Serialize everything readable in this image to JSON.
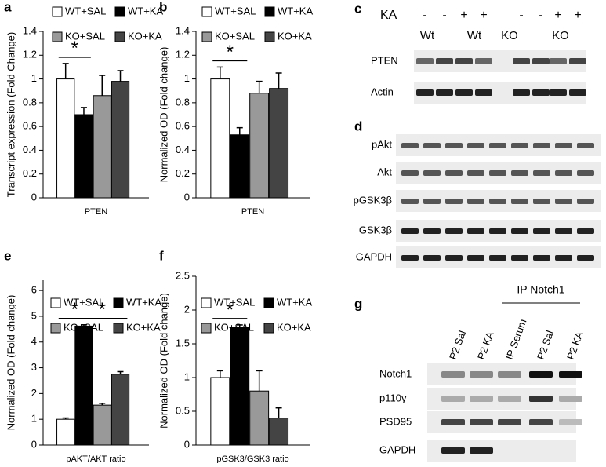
{
  "chart_data": [
    {
      "type": "bar",
      "panel": "a",
      "ylabel": "Transcript expression (Fold Change)",
      "categories": [
        "PTEN"
      ],
      "series": [
        {
          "name": "WT+SAL",
          "color": "#ffffff",
          "values": [
            1.0
          ],
          "errors": [
            0.13
          ]
        },
        {
          "name": "WT+KA",
          "color": "#000000",
          "values": [
            0.7
          ],
          "errors": [
            0.06
          ]
        },
        {
          "name": "KO+SAL",
          "color": "#999999",
          "values": [
            0.86
          ],
          "errors": [
            0.17
          ]
        },
        {
          "name": "KO+KA",
          "color": "#444444",
          "values": [
            0.98
          ],
          "errors": [
            0.09
          ]
        }
      ],
      "ylim": [
        0,
        1.4
      ],
      "yticks": [
        0,
        0.2,
        0.4,
        0.6,
        0.8,
        1,
        1.2,
        1.4
      ],
      "annotations": [
        "*"
      ]
    },
    {
      "type": "bar",
      "panel": "b",
      "ylabel": "Normalized OD (Fold change)",
      "categories": [
        "PTEN"
      ],
      "series": [
        {
          "name": "WT+SAL",
          "color": "#ffffff",
          "values": [
            1.0
          ],
          "errors": [
            0.1
          ]
        },
        {
          "name": "WT+KA",
          "color": "#000000",
          "values": [
            0.53
          ],
          "errors": [
            0.06
          ]
        },
        {
          "name": "KO+SAL",
          "color": "#999999",
          "values": [
            0.88
          ],
          "errors": [
            0.1
          ]
        },
        {
          "name": "KO+KA",
          "color": "#444444",
          "values": [
            0.92
          ],
          "errors": [
            0.13
          ]
        }
      ],
      "ylim": [
        0,
        1.4
      ],
      "yticks": [
        0,
        0.2,
        0.4,
        0.6,
        0.8,
        1,
        1.2,
        1.4
      ],
      "annotations": [
        "*"
      ]
    },
    {
      "type": "bar",
      "panel": "e",
      "ylabel": "Normalized OD (Fold change)",
      "categories": [
        "pAKT/AKT ratio"
      ],
      "series": [
        {
          "name": "WT+SAL",
          "color": "#ffffff",
          "values": [
            1.0
          ],
          "errors": [
            0.05
          ]
        },
        {
          "name": "WT+KA",
          "color": "#000000",
          "values": [
            4.62
          ],
          "errors": [
            0.05
          ]
        },
        {
          "name": "KO+SAL",
          "color": "#999999",
          "values": [
            1.55
          ],
          "errors": [
            0.07
          ]
        },
        {
          "name": "KO+KA",
          "color": "#444444",
          "values": [
            2.75
          ],
          "errors": [
            0.1
          ]
        }
      ],
      "ylim": [
        0,
        6.4
      ],
      "yticks": [
        0,
        1,
        2,
        3,
        4,
        5,
        6
      ],
      "annotations": [
        "*",
        "*"
      ]
    },
    {
      "type": "bar",
      "panel": "f",
      "ylabel": "Normalized OD (Fold change)",
      "categories": [
        "pGSK3/GSK3 ratio"
      ],
      "series": [
        {
          "name": "WT+SAL",
          "color": "#ffffff",
          "values": [
            1.0
          ],
          "errors": [
            0.1
          ]
        },
        {
          "name": "WT+KA",
          "color": "#000000",
          "values": [
            1.75
          ],
          "errors": [
            0.03
          ]
        },
        {
          "name": "KO+SAL",
          "color": "#999999",
          "values": [
            0.8
          ],
          "errors": [
            0.3
          ]
        },
        {
          "name": "KO+KA",
          "color": "#444444",
          "values": [
            0.4
          ],
          "errors": [
            0.15
          ]
        }
      ],
      "ylim": [
        0,
        2.5
      ],
      "yticks": [
        0,
        0.5,
        1,
        1.5,
        2,
        2.5
      ],
      "annotations": [
        "*"
      ]
    }
  ],
  "blots": {
    "c": {
      "label": "c",
      "treatment": "KA",
      "signs": [
        "-",
        "-",
        "+",
        "+",
        "-",
        "-",
        "+",
        "+"
      ],
      "groups": [
        "Wt",
        "Wt",
        "KO",
        "KO"
      ],
      "rows": [
        "PTEN",
        "Actin"
      ]
    },
    "d": {
      "label": "d",
      "rows": [
        "pAkt",
        "Akt",
        "pGSK3β",
        "GSK3β",
        "GAPDH"
      ]
    },
    "g": {
      "label": "g",
      "header": "IP Notch1",
      "lanes": [
        "P2 Sal",
        "P2 KA",
        "IP Serum",
        "P2 Sal",
        "P2 KA"
      ],
      "rows": [
        "Notch1",
        "p110γ",
        "PSD95",
        "GAPDH"
      ]
    }
  }
}
